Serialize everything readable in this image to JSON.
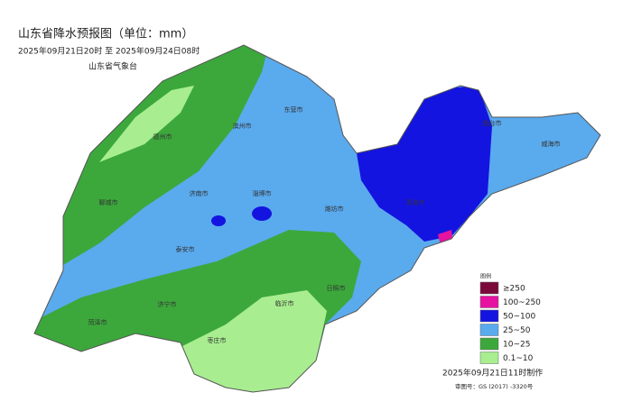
{
  "header": {
    "title": "山东省降水预报图（单位：mm）",
    "period": "2025年09月21日20时  至  2025年09月24日08时",
    "issuer": "山东省气象台"
  },
  "legend": {
    "title": "图例",
    "items": [
      {
        "label": "≥250",
        "color": "#7a0a3a"
      },
      {
        "label": "100~250",
        "color": "#e612a0"
      },
      {
        "label": "50~100",
        "color": "#1414e0"
      },
      {
        "label": "25~50",
        "color": "#5aaaee"
      },
      {
        "label": "10~25",
        "color": "#3ca83c"
      },
      {
        "label": "0.1~10",
        "color": "#a8ee90"
      }
    ]
  },
  "footer": {
    "made": "2025年09月21日11时制作",
    "review": "审图号：GS (2017) -3320号"
  },
  "cities": [
    {
      "label": "德州市"
    },
    {
      "label": "滨州市"
    },
    {
      "label": "东营市"
    },
    {
      "label": "烟台市"
    },
    {
      "label": "威海市"
    },
    {
      "label": "聊城市"
    },
    {
      "label": "济南市"
    },
    {
      "label": "淄博市"
    },
    {
      "label": "潍坊市"
    },
    {
      "label": "青岛市"
    },
    {
      "label": "泰安市"
    },
    {
      "label": "日照市"
    },
    {
      "label": "济宁市"
    },
    {
      "label": "菏泽市"
    },
    {
      "label": "临沂市"
    },
    {
      "label": "枣庄市"
    }
  ]
}
